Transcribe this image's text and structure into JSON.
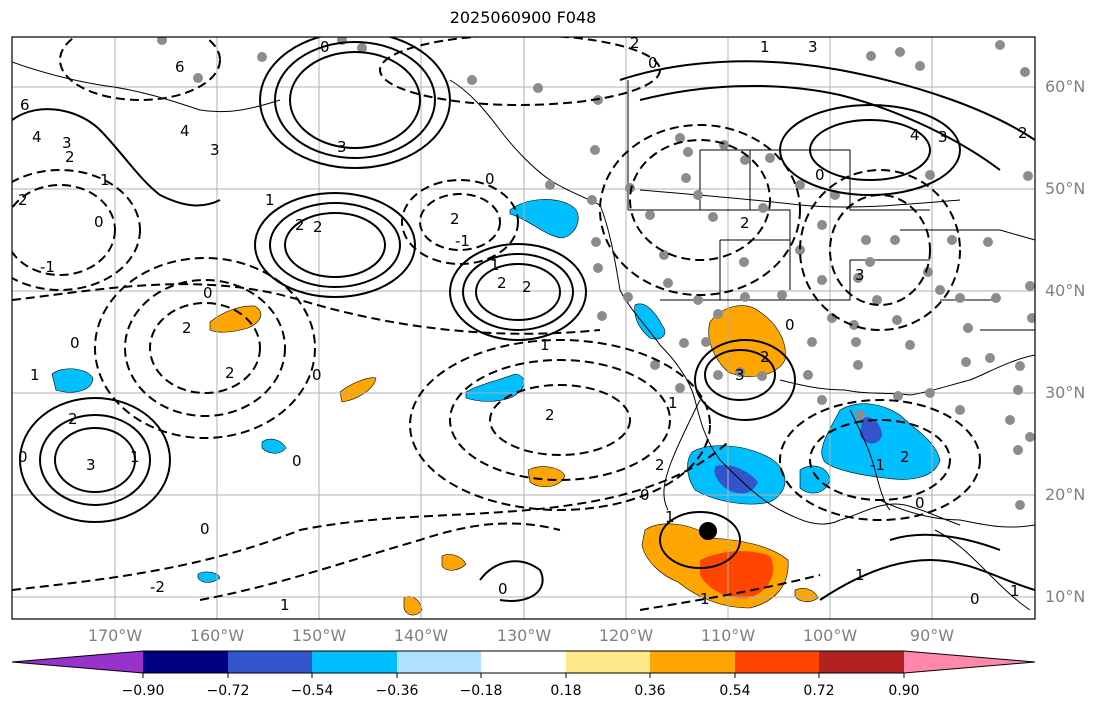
{
  "title": "2025060900 F048",
  "lat_labels": [
    "60°N",
    "50°N",
    "40°N",
    "30°N",
    "20°N",
    "10°N"
  ],
  "lon_labels": [
    "170°W",
    "160°W",
    "150°W",
    "140°W",
    "130°W",
    "120°W",
    "110°W",
    "100°W",
    "90°W"
  ],
  "colorbar": {
    "colors": [
      "#9932cc",
      "#000080",
      "#3355cc",
      "#00bfff",
      "#b0e0ff",
      "#ffffff",
      "#ffe88a",
      "#ffa500",
      "#ff4500",
      "#b22222",
      "#ff88aa"
    ],
    "tick_labels": [
      "−0.90",
      "−0.72",
      "−0.54",
      "−0.36",
      "−0.18",
      "0.18",
      "0.36",
      "0.54",
      "0.72",
      "0.90"
    ]
  },
  "contour_labels": [
    "0",
    "1",
    "2",
    "3",
    "4",
    "6",
    "-1",
    "-2"
  ],
  "colors": {
    "gridline": "#b0b0b0",
    "coast": "#000000",
    "station_dot": "#8c8c8c",
    "storm_center": "#000000"
  }
}
